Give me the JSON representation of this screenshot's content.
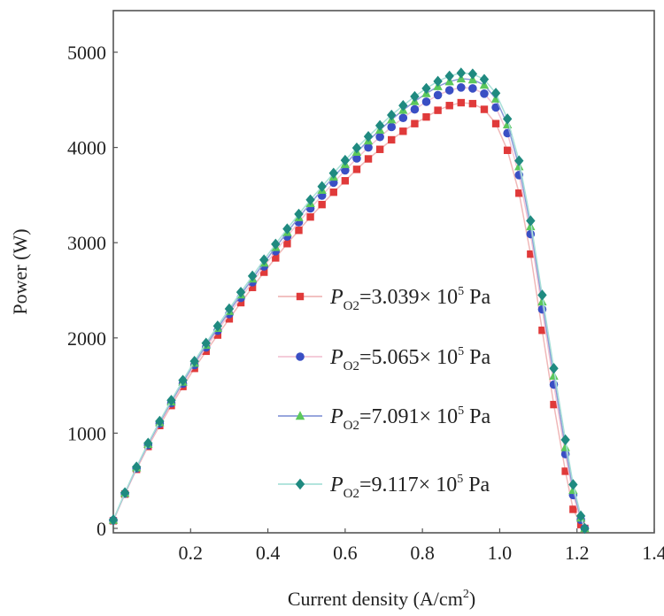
{
  "chart_data": {
    "type": "line",
    "title": "",
    "xlabel": "Current density (A/cm",
    "xlabel_sup": "2",
    "xlabel_tail": ")",
    "ylabel": "Power (W)",
    "xlim": [
      0,
      1.4
    ],
    "ylim": [
      0,
      5500
    ],
    "xticks": [
      0.2,
      0.4,
      0.6,
      0.8,
      1.0,
      1.2,
      1.4
    ],
    "xtick_labels": [
      "0.2",
      "0.4",
      "0.6",
      "0.8",
      "1.0",
      "1.2",
      "1.4"
    ],
    "yticks": [
      0,
      1000,
      2000,
      3000,
      4000,
      5000
    ],
    "ytick_labels": [
      "0",
      "1000",
      "2000",
      "3000",
      "4000",
      "5000"
    ],
    "legend_position": "lower-center",
    "x": [
      0.0,
      0.03,
      0.06,
      0.09,
      0.12,
      0.15,
      0.18,
      0.21,
      0.24,
      0.27,
      0.3,
      0.33,
      0.36,
      0.39,
      0.42,
      0.45,
      0.48,
      0.51,
      0.54,
      0.57,
      0.6,
      0.63,
      0.66,
      0.69,
      0.72,
      0.75,
      0.78,
      0.81,
      0.84,
      0.87,
      0.9,
      0.93,
      0.96,
      0.99,
      1.02,
      1.05,
      1.08,
      1.11,
      1.14,
      1.17,
      1.19,
      1.21,
      1.22
    ],
    "series": [
      {
        "name_italic": "P",
        "name_sub": "O2",
        "name_mid": "=3.039× 10",
        "name_sup": "5",
        "name_unit": " Pa",
        "color": "#e03a3a",
        "line_color": "#f0b8b8",
        "marker": "square",
        "values": [
          80,
          360,
          620,
          860,
          1080,
          1290,
          1490,
          1680,
          1860,
          2030,
          2200,
          2370,
          2530,
          2690,
          2840,
          2990,
          3130,
          3270,
          3400,
          3530,
          3650,
          3770,
          3880,
          3980,
          4080,
          4170,
          4250,
          4320,
          4390,
          4440,
          4470,
          4460,
          4400,
          4250,
          3970,
          3520,
          2880,
          2080,
          1300,
          600,
          200,
          40,
          0
        ]
      },
      {
        "name_italic": "P",
        "name_sub": "O2",
        "name_mid": "=5.065× 10",
        "name_sup": "5",
        "name_unit": " Pa",
        "color": "#3a4fc4",
        "line_color": "#f2c4d4",
        "marker": "circle",
        "values": [
          85,
          365,
          630,
          875,
          1100,
          1315,
          1520,
          1715,
          1900,
          2075,
          2250,
          2420,
          2585,
          2750,
          2910,
          3065,
          3215,
          3360,
          3495,
          3630,
          3760,
          3885,
          4000,
          4110,
          4215,
          4310,
          4400,
          4480,
          4550,
          4600,
          4630,
          4620,
          4565,
          4420,
          4150,
          3710,
          3090,
          2300,
          1510,
          780,
          350,
          90,
          0
        ]
      },
      {
        "name_italic": "P",
        "name_sub": "O2",
        "name_mid": "=7.091× 10",
        "name_sup": "5",
        "name_unit": " Pa",
        "color": "#5cc85c",
        "line_color": "#8a9ad8",
        "marker": "triangle",
        "values": [
          88,
          370,
          638,
          885,
          1112,
          1330,
          1538,
          1736,
          1924,
          2102,
          2280,
          2453,
          2620,
          2788,
          2952,
          3110,
          3265,
          3413,
          3552,
          3690,
          3823,
          3952,
          4070,
          4184,
          4292,
          4392,
          4484,
          4567,
          4640,
          4692,
          4722,
          4712,
          4656,
          4510,
          4240,
          3800,
          3170,
          2380,
          1600,
          850,
          400,
          110,
          0
        ]
      },
      {
        "name_italic": "P",
        "name_sub": "O2",
        "name_mid": "=9.117× 10",
        "name_sup": "5",
        "name_unit": " Pa",
        "color": "#1f8a80",
        "line_color": "#a8e0d8",
        "marker": "diamond",
        "values": [
          90,
          375,
          645,
          895,
          1125,
          1345,
          1555,
          1755,
          1945,
          2125,
          2305,
          2480,
          2650,
          2820,
          2985,
          3145,
          3300,
          3450,
          3590,
          3730,
          3865,
          3995,
          4115,
          4230,
          4340,
          4440,
          4535,
          4620,
          4695,
          4750,
          4782,
          4772,
          4715,
          4570,
          4300,
          3860,
          3230,
          2450,
          1680,
          930,
          460,
          130,
          0
        ]
      }
    ]
  }
}
